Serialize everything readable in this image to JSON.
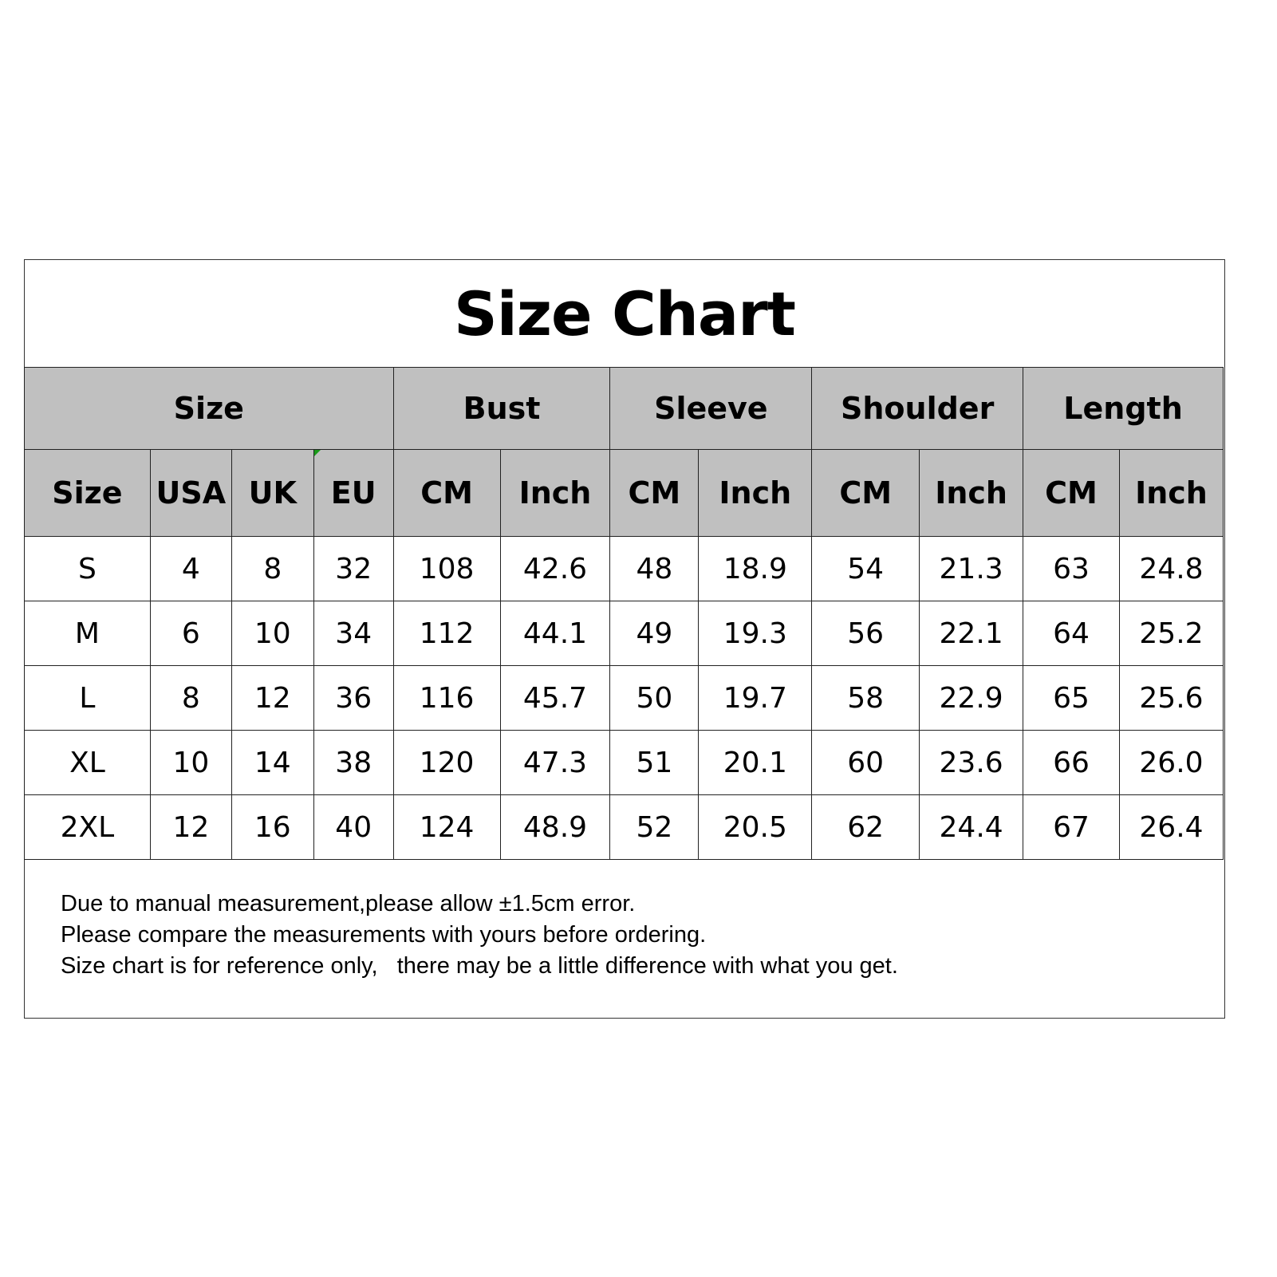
{
  "title": "Size Chart",
  "group_headers": [
    "Size",
    "Bust",
    "Sleeve",
    "Shoulder",
    "Length"
  ],
  "sub_headers": [
    "Size",
    "USA",
    "UK",
    "EU",
    "CM",
    "Inch",
    "CM",
    "Inch",
    "CM",
    "Inch",
    "CM",
    "Inch"
  ],
  "rows": [
    [
      "S",
      "4",
      "8",
      "32",
      "108",
      "42.6",
      "48",
      "18.9",
      "54",
      "21.3",
      "63",
      "24.8"
    ],
    [
      "M",
      "6",
      "10",
      "34",
      "112",
      "44.1",
      "49",
      "19.3",
      "56",
      "22.1",
      "64",
      "25.2"
    ],
    [
      "L",
      "8",
      "12",
      "36",
      "116",
      "45.7",
      "50",
      "19.7",
      "58",
      "22.9",
      "65",
      "25.6"
    ],
    [
      "XL",
      "10",
      "14",
      "38",
      "120",
      "47.3",
      "51",
      "20.1",
      "60",
      "23.6",
      "66",
      "26.0"
    ],
    [
      "2XL",
      "12",
      "16",
      "40",
      "124",
      "48.9",
      "52",
      "20.5",
      "62",
      "24.4",
      "67",
      "26.4"
    ]
  ],
  "notes": [
    "Due to manual measurement,please allow ±1.5cm error.",
    "Please compare the measurements with yours before ordering.",
    "Size chart is for reference only,   there may be a little difference with what you get."
  ],
  "colors": {
    "header_bg": "#c0c0c0",
    "border": "#222222"
  }
}
